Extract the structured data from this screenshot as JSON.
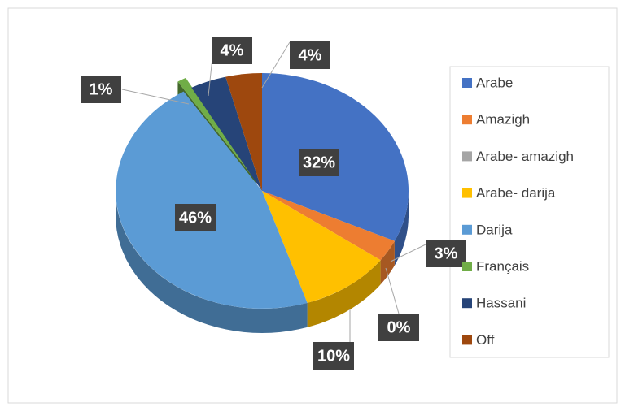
{
  "chart_data": {
    "type": "pie",
    "categories": [
      "Arabe",
      "Amazigh",
      "Arabe- amazigh",
      "Arabe- darija",
      "Darija",
      "Français",
      "Hassani",
      "Off"
    ],
    "values": [
      32,
      3,
      0,
      10,
      46,
      1,
      4,
      4
    ],
    "value_labels": [
      "32%",
      "3%",
      "0%",
      "10%",
      "46%",
      "1%",
      "4%",
      "4%"
    ],
    "colors": [
      "#4472c4",
      "#ed7d31",
      "#a5a5a5",
      "#ffc000",
      "#5b9bd5",
      "#70ad47",
      "#264478",
      "#9e480e"
    ],
    "legend": "right"
  }
}
